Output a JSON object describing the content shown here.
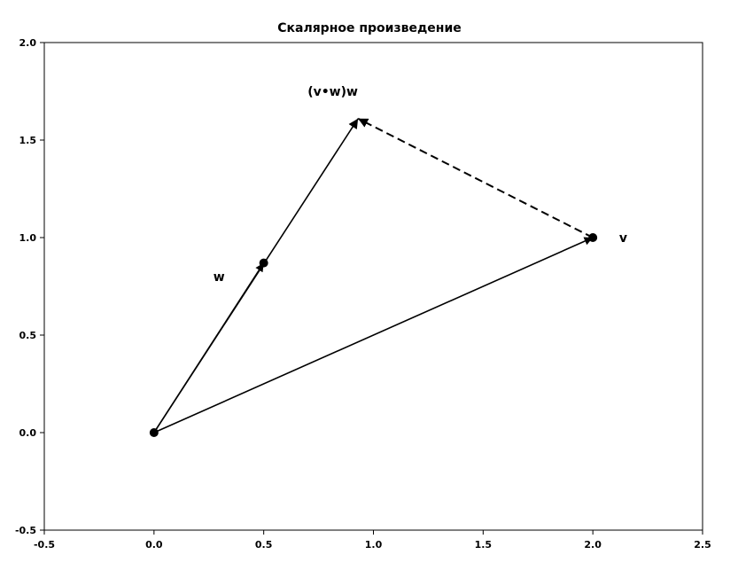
{
  "chart_data": {
    "type": "scatter",
    "title": "Скалярное произведение",
    "xlabel": "",
    "ylabel": "",
    "xlim": [
      -0.5,
      2.5
    ],
    "ylim": [
      -0.5,
      2.0
    ],
    "xticks": [
      "-0.5",
      "0.0",
      "0.5",
      "1.0",
      "1.5",
      "2.0",
      "2.5"
    ],
    "yticks": [
      "-0.5",
      "0.0",
      "0.5",
      "1.0",
      "1.5",
      "2.0"
    ],
    "grid": false,
    "arrows": [
      {
        "from": [
          0,
          0
        ],
        "to": [
          0.5,
          0.87
        ],
        "style": "solid",
        "head": "large"
      },
      {
        "from": [
          0,
          0
        ],
        "to": [
          2,
          1
        ],
        "style": "solid",
        "head": "large"
      },
      {
        "from": [
          0,
          0
        ],
        "to": [
          0.93,
          1.61
        ],
        "style": "solid",
        "head": "small"
      },
      {
        "from": [
          2,
          1
        ],
        "to": [
          0.93,
          1.61
        ],
        "style": "dashed",
        "head": "small"
      }
    ],
    "points": [
      {
        "x": 0,
        "y": 0
      },
      {
        "x": 0.5,
        "y": 0.87
      },
      {
        "x": 2,
        "y": 1
      }
    ],
    "annotations": [
      {
        "text": "w",
        "x": 0.27,
        "y": 0.8
      },
      {
        "text": "v",
        "x": 2.12,
        "y": 1.0
      },
      {
        "text": "(v•w)w",
        "x": 0.7,
        "y": 1.75
      }
    ]
  }
}
